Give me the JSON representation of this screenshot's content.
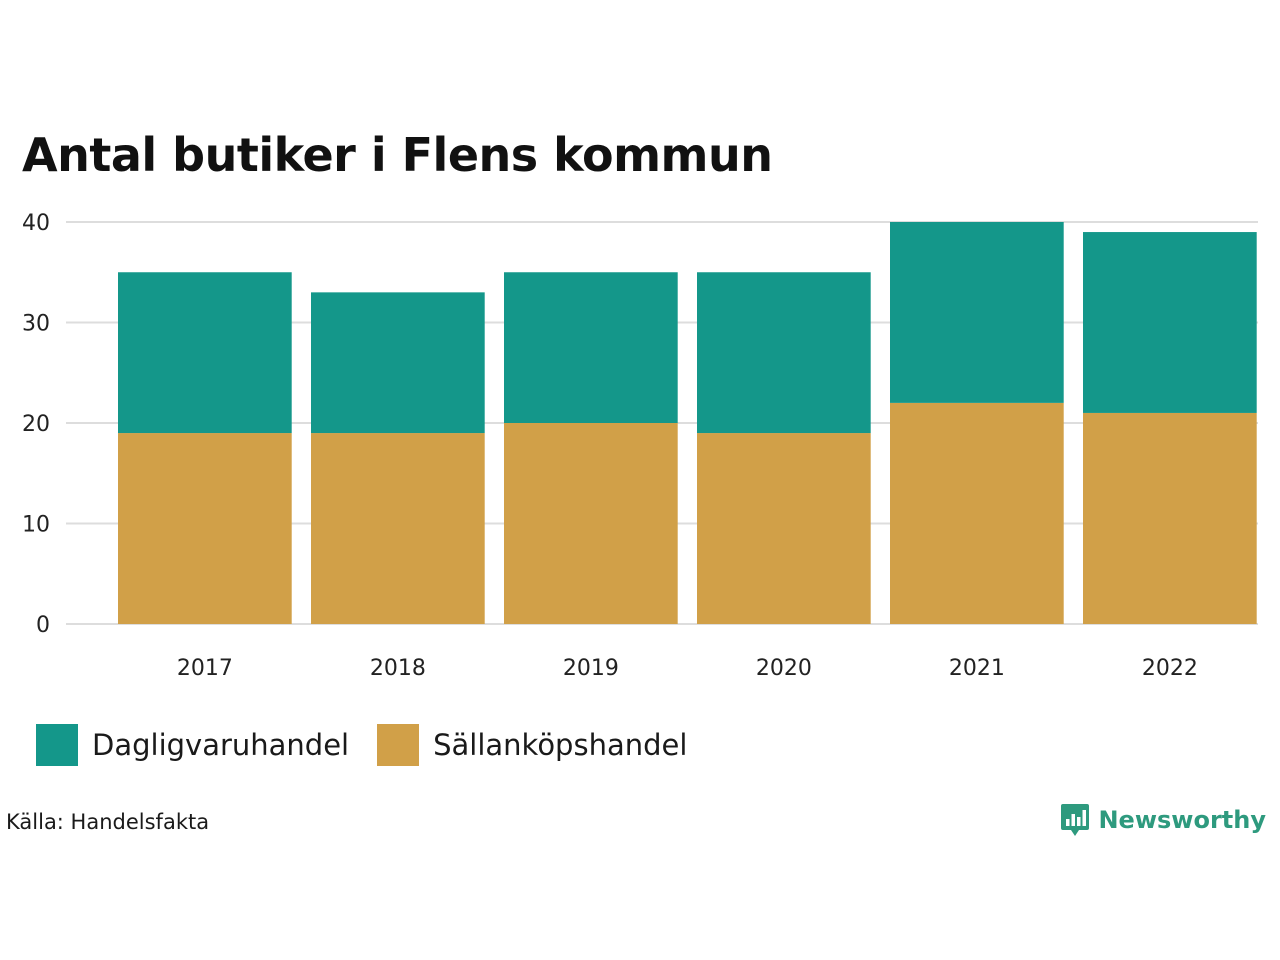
{
  "title": "Antal butiker i Flens kommun",
  "source": "Källa: Handelsfakta",
  "brand": {
    "name": "Newsworthy",
    "icon": "newsworthy-logo-icon",
    "color": "#2e9a7e"
  },
  "colors": {
    "Dagligvaruhandel": "#14978a",
    "Sällanköpshandel": "#d1a048",
    "grid": "#dddddd"
  },
  "legend": [
    {
      "name": "Dagligvaruhandel",
      "color": "#14978a"
    },
    {
      "name": "Sällanköpshandel",
      "color": "#d1a048"
    }
  ],
  "chart_data": {
    "type": "bar",
    "stacked": true,
    "categories": [
      "2017",
      "2018",
      "2019",
      "2020",
      "2021",
      "2022"
    ],
    "series": [
      {
        "name": "Sällanköpshandel",
        "values": [
          19,
          19,
          20,
          19,
          22,
          21
        ]
      },
      {
        "name": "Dagligvaruhandel",
        "values": [
          16,
          14,
          15,
          16,
          18,
          18
        ]
      }
    ],
    "yticks": [
      0,
      10,
      20,
      30,
      40
    ],
    "ylim": [
      0,
      40
    ],
    "grid": true,
    "legend_position": "bottom-left",
    "title": "Antal butiker i Flens kommun"
  }
}
